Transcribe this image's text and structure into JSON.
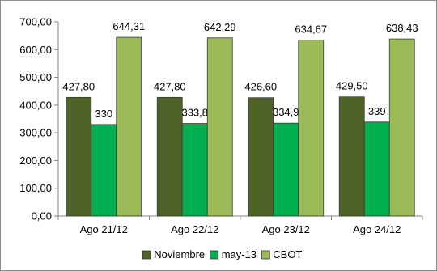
{
  "chart_data": {
    "type": "bar",
    "categories": [
      "Ago 21/12",
      "Ago 22/12",
      "Ago 23/12",
      "Ago 24/12"
    ],
    "series": [
      {
        "name": "Noviembre",
        "values": [
          427.8,
          427.8,
          426.6,
          429.5
        ],
        "labels": [
          "427,80",
          "427,80",
          "426,60",
          "429,50"
        ],
        "color": "#4f6228"
      },
      {
        "name": "may-13",
        "values": [
          330,
          333.8,
          334.9,
          339
        ],
        "labels": [
          "330",
          "333,8",
          "334,9",
          "339"
        ],
        "color": "#00b050"
      },
      {
        "name": "CBOT",
        "values": [
          644.31,
          642.29,
          634.67,
          638.43
        ],
        "labels": [
          "644,31",
          "642,29",
          "634,67",
          "638,43"
        ],
        "color": "#9bbb59"
      }
    ],
    "yticks": [
      0,
      100,
      200,
      300,
      400,
      500,
      600,
      700
    ],
    "ytick_labels": [
      "0,00",
      "100,00",
      "200,00",
      "300,00",
      "400,00",
      "500,00",
      "600,00",
      "700,00"
    ],
    "ylim": [
      0,
      700
    ],
    "grid": false,
    "legend_position": "bottom"
  }
}
